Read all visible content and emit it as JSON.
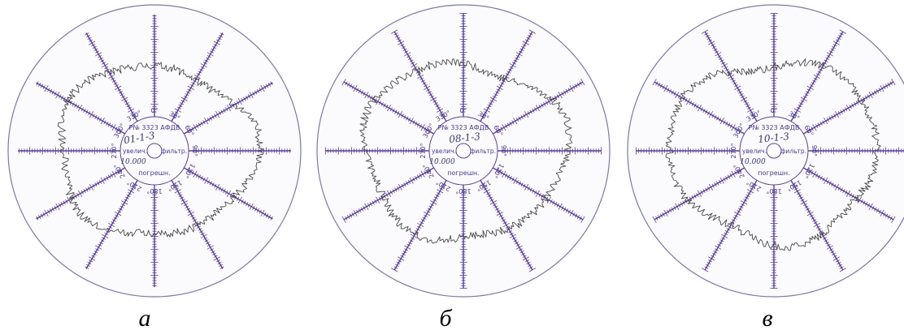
{
  "charts": [
    {
      "caption": "а",
      "serial": "Р№ 3323 АФДВ",
      "sample_id": "01-1-3",
      "magnification_label": "увелич.",
      "magnification_value": "10.000",
      "filter_label": "фильтр.",
      "error_label": "погрешн.",
      "angle_labels": [
        "0°",
        "330°",
        "300°",
        "270°",
        "240°",
        "210°",
        "180°",
        "150°",
        "120°",
        "90°",
        "60°",
        "30°"
      ],
      "profile_seed": 11,
      "profile_level": 0.56
    },
    {
      "caption": "б",
      "serial": "Р№ 3323 АФДВ",
      "sample_id": "08-1-3",
      "magnification_label": "увелич.",
      "magnification_value": "10.000",
      "filter_label": "фильтр.",
      "error_label": "погрешн.",
      "angle_labels": [
        "0°",
        "330°",
        "300°",
        "270°",
        "240°",
        "210°",
        "180°",
        "150°",
        "120°",
        "90°",
        "60°",
        "30°"
      ],
      "profile_seed": 23,
      "profile_level": 0.58
    },
    {
      "caption": "в",
      "serial": "Р№ 3323 АФДВ",
      "sample_id": "10-1-3",
      "magnification_label": "увелич.",
      "magnification_value": "10.000",
      "filter_label": "фильтр.",
      "error_label": "погрешн.",
      "angle_labels": [
        "0°",
        "330°",
        "300°",
        "270°",
        "240°",
        "210°",
        "180°",
        "150°",
        "120°",
        "90°",
        "60°",
        "30°"
      ],
      "profile_seed": 37,
      "profile_level": 0.6
    }
  ]
}
